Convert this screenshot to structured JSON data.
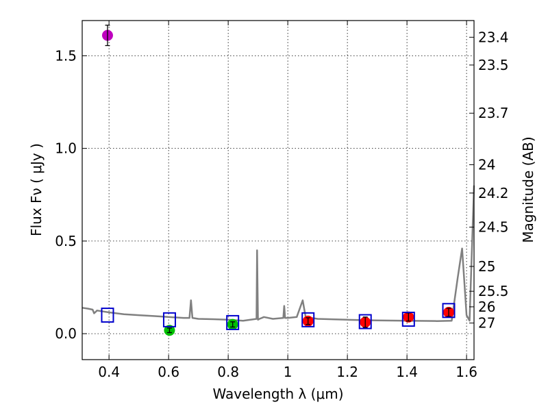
{
  "chart_data": {
    "type": "scatter",
    "title": "",
    "xlabel": "Wavelength  λ (μm)",
    "ylabel": "Flux  Fν  ( μJy )",
    "y2label": "Magnitude (AB)",
    "xlim": [
      0.31,
      1.625
    ],
    "ylim": [
      -0.14,
      1.69
    ],
    "grid": true,
    "x_ticks": [
      0.4,
      0.6,
      0.8,
      1.0,
      1.2,
      1.4,
      1.6
    ],
    "x_tick_labels": [
      "0.4",
      "0.6",
      "0.8",
      "1",
      "1.2",
      "1.4",
      "1.6"
    ],
    "y_ticks": [
      0.0,
      0.5,
      1.0,
      1.5
    ],
    "y_tick_labels": [
      "0.0",
      "0.5",
      "1.0",
      "1.5"
    ],
    "magnitude_ticks": [
      "23.4",
      "23.5",
      "23.7",
      "24",
      "24.2",
      "24.5",
      "25",
      "25.5",
      "26",
      "27"
    ],
    "magnitude_tick_fluxes": [
      1.6,
      1.45,
      1.19,
      0.912,
      0.759,
      0.575,
      0.363,
      0.229,
      0.145,
      0.0575
    ],
    "observed_points": [
      {
        "x": 0.395,
        "y": 1.61,
        "yerr": 0.055,
        "color": "#bf00bf"
      },
      {
        "x": 0.603,
        "y": 0.018,
        "yerr": 0.012,
        "color": "#00bf00"
      },
      {
        "x": 0.815,
        "y": 0.05,
        "yerr": 0.014,
        "color": "#00bf00"
      },
      {
        "x": 1.068,
        "y": 0.068,
        "yerr": 0.018,
        "color": "#ff0000"
      },
      {
        "x": 1.26,
        "y": 0.062,
        "yerr": 0.028,
        "color": "#ff0000"
      },
      {
        "x": 1.405,
        "y": 0.09,
        "yerr": 0.022,
        "color": "#ff0000"
      },
      {
        "x": 1.54,
        "y": 0.115,
        "yerr": 0.022,
        "color": "#ff0000"
      }
    ],
    "model_points": [
      {
        "x": 0.395,
        "y": 0.1
      },
      {
        "x": 0.603,
        "y": 0.075
      },
      {
        "x": 0.815,
        "y": 0.06
      },
      {
        "x": 1.068,
        "y": 0.075
      },
      {
        "x": 1.26,
        "y": 0.065
      },
      {
        "x": 1.405,
        "y": 0.078
      },
      {
        "x": 1.54,
        "y": 0.125
      }
    ],
    "model_sed": {
      "color": "#808080",
      "x": [
        0.31,
        0.33,
        0.345,
        0.35,
        0.36,
        0.38,
        0.4,
        0.45,
        0.5,
        0.55,
        0.6,
        0.65,
        0.67,
        0.675,
        0.68,
        0.7,
        0.75,
        0.8,
        0.85,
        0.895,
        0.897,
        0.9,
        0.905,
        0.92,
        0.95,
        0.985,
        0.988,
        0.991,
        1.0,
        1.03,
        1.05,
        1.06,
        1.1,
        1.2,
        1.3,
        1.4,
        1.5,
        1.55,
        1.57,
        1.585,
        1.6,
        1.61,
        1.625
      ],
      "y": [
        0.14,
        0.135,
        0.13,
        0.11,
        0.125,
        0.12,
        0.115,
        0.105,
        0.1,
        0.095,
        0.09,
        0.085,
        0.085,
        0.18,
        0.085,
        0.08,
        0.078,
        0.075,
        0.07,
        0.08,
        0.45,
        0.075,
        0.08,
        0.09,
        0.08,
        0.085,
        0.15,
        0.085,
        0.085,
        0.09,
        0.18,
        0.09,
        0.08,
        0.075,
        0.072,
        0.07,
        0.068,
        0.07,
        0.3,
        0.46,
        0.1,
        0.07,
        0.8
      ]
    }
  }
}
